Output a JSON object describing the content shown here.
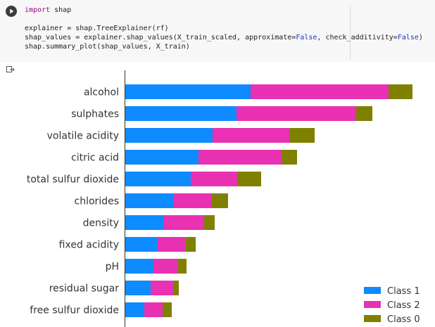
{
  "code_cell": {
    "run_icon": "play-circle-icon",
    "lines": [
      [
        {
          "t": "import",
          "c": "kw"
        },
        {
          "t": " shap"
        }
      ],
      [
        {
          "t": ""
        }
      ],
      [
        {
          "t": "explainer = shap.TreeExplainer(rf)"
        }
      ],
      [
        {
          "t": "shap_values = explainer.shap_values(X_train_scaled, approximate="
        },
        {
          "t": "False",
          "c": "bool"
        },
        {
          "t": ", check_additivity="
        },
        {
          "t": "False",
          "c": "bool"
        },
        {
          "t": ")"
        }
      ],
      [
        {
          "t": "shap.summary_plot(shap_values, X_train)"
        }
      ]
    ]
  },
  "output": {
    "icon": "output-arrow-icon"
  },
  "chart_data": {
    "type": "bar",
    "orientation": "horizontal",
    "stacked": true,
    "categories": [
      "alcohol",
      "sulphates",
      "volatile acidity",
      "citric acid",
      "total sulfur dioxide",
      "chlorides",
      "density",
      "fixed acidity",
      "pH",
      "residual sugar",
      "free sulfur dioxide"
    ],
    "series": [
      {
        "name": "Class 1",
        "color": "#0d8bff",
        "values": [
          179,
          159,
          125,
          105,
          94,
          70,
          56,
          47,
          41,
          37,
          28
        ]
      },
      {
        "name": "Class 2",
        "color": "#e831b3",
        "values": [
          196,
          170,
          109,
          118,
          67,
          54,
          57,
          40,
          35,
          32,
          26
        ]
      },
      {
        "name": "Class 0",
        "color": "#808000",
        "values": [
          34,
          23,
          36,
          22,
          33,
          23,
          15,
          14,
          12,
          8,
          13
        ]
      }
    ],
    "legend_position": "bottom-right",
    "grid": false
  }
}
